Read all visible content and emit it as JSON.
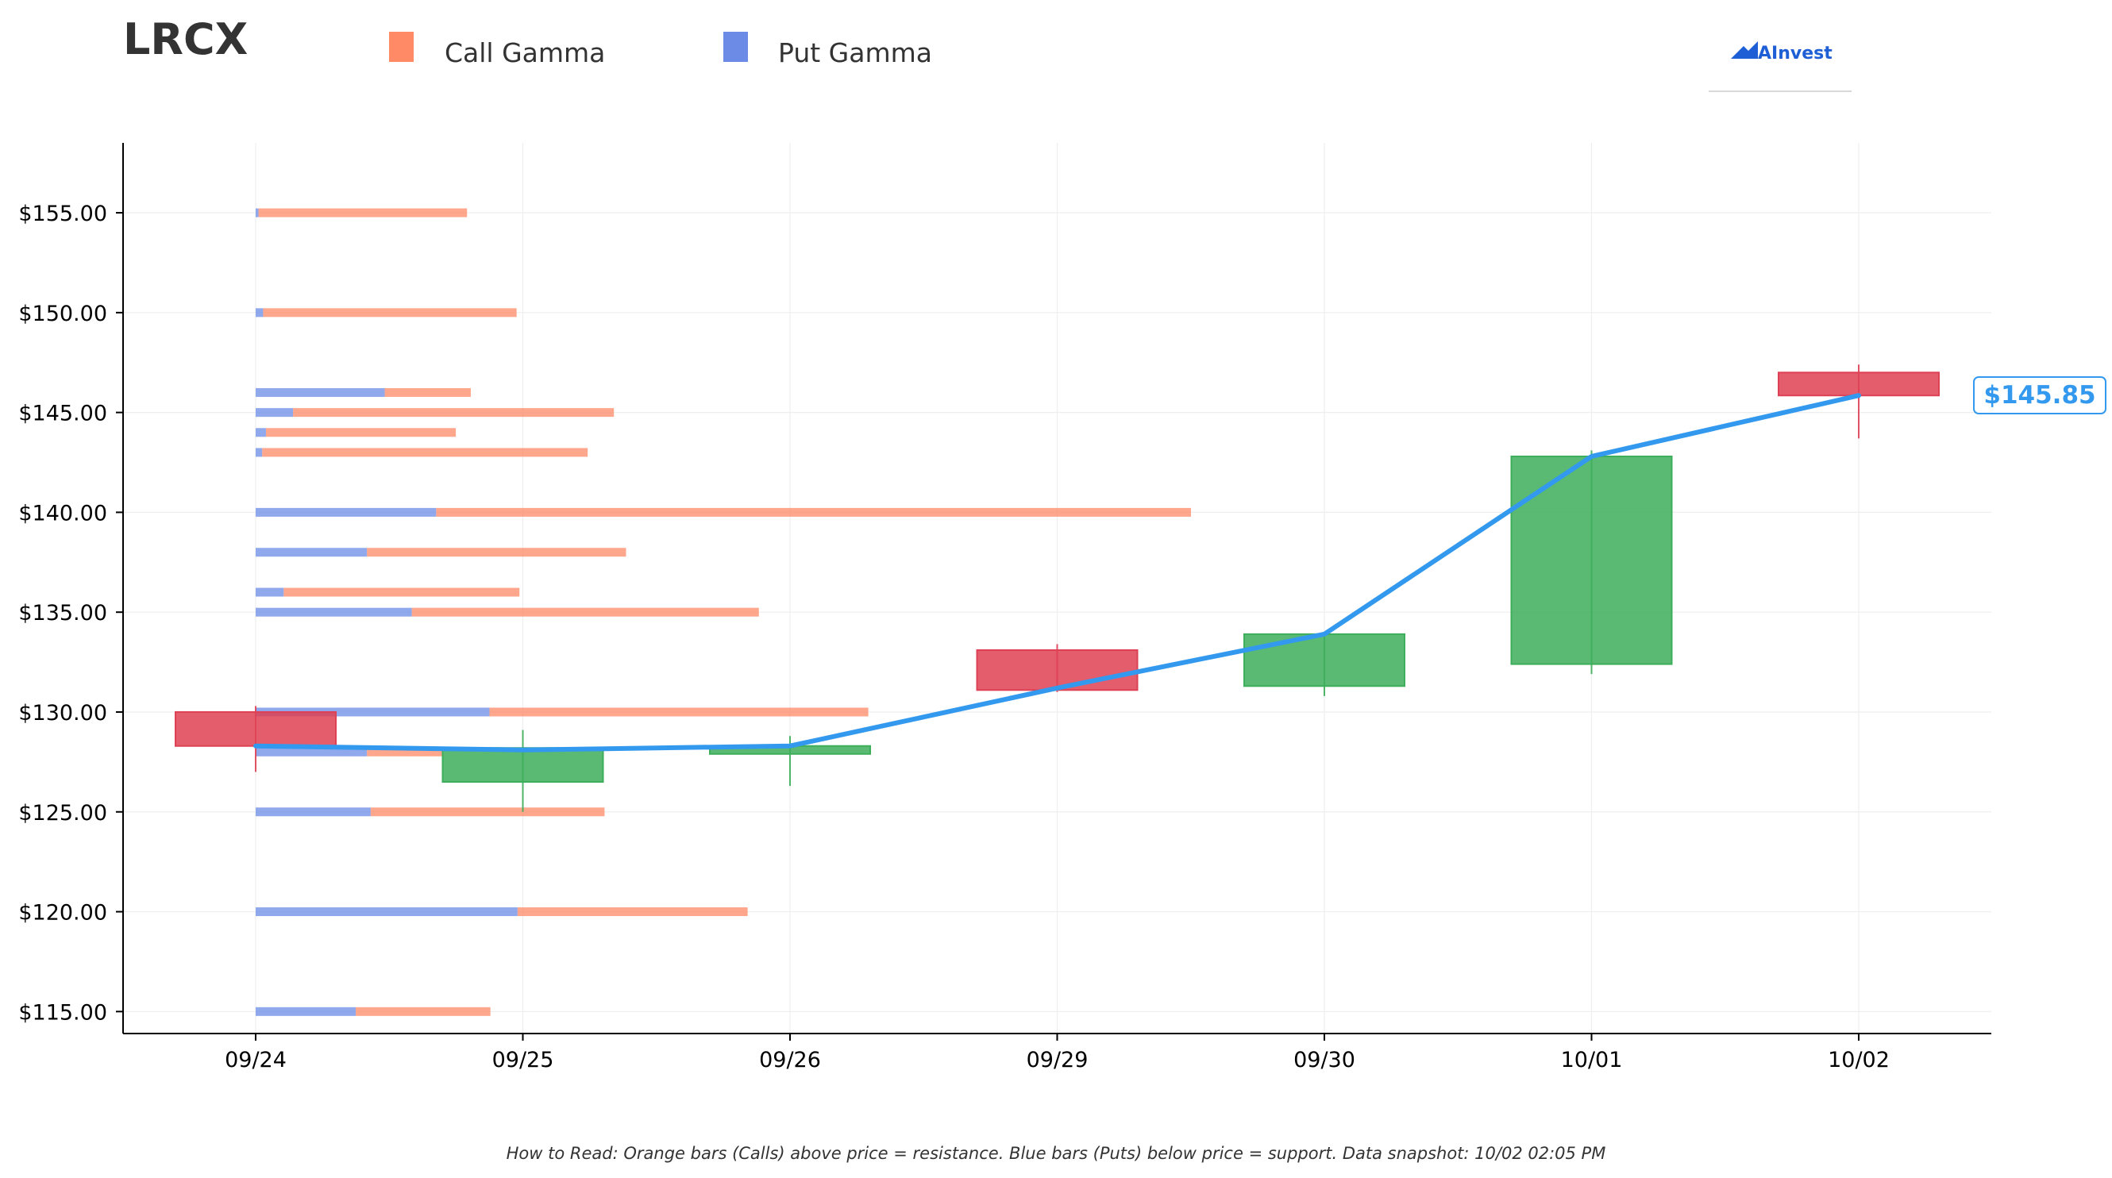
{
  "ticker": "LRCX",
  "legend": {
    "call_label": "Call Gamma",
    "put_label": "Put Gamma"
  },
  "logo": {
    "text": "AInvest"
  },
  "footer": "How to Read: Orange bars (Calls) above price = resistance. Blue bars (Puts) below price = support. Data snapshot: 10/02 02:05 PM",
  "colors": {
    "call": "#FF8A65",
    "put": "#6B8BE6",
    "up": "#3DAE5A",
    "down": "#DE4154",
    "price_line": "#3399EE",
    "axis": "#000000",
    "grid": "#EEEEEE",
    "title": "#333333"
  },
  "chart_data": {
    "type": "candlestick",
    "title": "LRCX",
    "xlabel": "",
    "ylabel": "",
    "ylim": [
      113.9,
      158.5
    ],
    "grid": true,
    "legend_placement": "top-left",
    "categories": [
      "09/24",
      "09/25",
      "09/26",
      "09/29",
      "09/30",
      "10/01",
      "10/02"
    ],
    "y_ticks": [
      115,
      120,
      125,
      130,
      135,
      140,
      145,
      150,
      155
    ],
    "y_tick_labels": [
      "$115.00",
      "$120.00",
      "$125.00",
      "$130.00",
      "$135.00",
      "$140.00",
      "$145.00",
      "$150.00",
      "$155.00"
    ],
    "candles": [
      {
        "date": "09/24",
        "open": 130.0,
        "high": 130.3,
        "low": 127.0,
        "close": 128.3
      },
      {
        "date": "09/25",
        "open": 126.5,
        "high": 129.1,
        "low": 125.0,
        "close": 128.2
      },
      {
        "date": "09/26",
        "open": 127.9,
        "high": 128.8,
        "low": 126.3,
        "close": 128.3
      },
      {
        "date": "09/29",
        "open": 133.1,
        "high": 133.4,
        "low": 131.0,
        "close": 131.1
      },
      {
        "date": "09/30",
        "open": 131.3,
        "high": 133.9,
        "low": 130.8,
        "close": 133.9
      },
      {
        "date": "10/01",
        "open": 132.4,
        "high": 143.1,
        "low": 131.9,
        "close": 142.8
      },
      {
        "date": "10/02",
        "open": 147.0,
        "high": 147.4,
        "low": 143.7,
        "close": 145.85
      }
    ],
    "price_line": {
      "name": "price",
      "values": [
        128.3,
        128.1,
        128.3,
        131.2,
        133.9,
        142.8,
        145.85
      ]
    },
    "current_price": 145.85,
    "current_price_label": "$145.85",
    "gamma_scale_max": 100,
    "gamma": [
      {
        "strike": 155,
        "put": 0.3,
        "call": 22.3
      },
      {
        "strike": 150,
        "put": 0.8,
        "call": 27.1
      },
      {
        "strike": 146,
        "put": 13.8,
        "call": 9.2
      },
      {
        "strike": 145,
        "put": 4.0,
        "call": 34.3
      },
      {
        "strike": 144,
        "put": 1.1,
        "call": 20.3
      },
      {
        "strike": 143,
        "put": 0.7,
        "call": 34.8
      },
      {
        "strike": 140,
        "put": 19.3,
        "call": 80.7
      },
      {
        "strike": 138,
        "put": 11.9,
        "call": 27.7
      },
      {
        "strike": 136,
        "put": 3.0,
        "call": 25.2
      },
      {
        "strike": 135,
        "put": 16.7,
        "call": 37.1
      },
      {
        "strike": 130,
        "put": 25.0,
        "call": 40.5
      },
      {
        "strike": 128,
        "put": 11.9,
        "call": 8.1
      },
      {
        "strike": 125,
        "put": 12.3,
        "call": 25.0
      },
      {
        "strike": 120,
        "put": 28.0,
        "call": 24.6
      },
      {
        "strike": 115,
        "put": 10.7,
        "call": 14.4
      }
    ]
  }
}
